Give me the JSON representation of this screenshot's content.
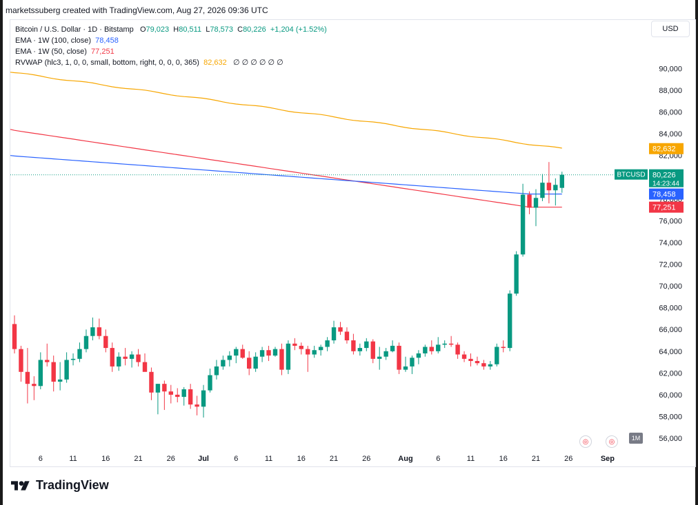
{
  "header": {
    "credit": "marketssuberg created with TradingView.com, Aug 27, 2026 09:36 UTC"
  },
  "legend": {
    "symbol": "Bitcoin / U.S. Dollar · 1D · Bitstamp",
    "open_label": "O",
    "open": "79,023",
    "high_label": "H",
    "high": "80,511",
    "low_label": "L",
    "low": "78,573",
    "close_label": "C",
    "close": "80,226",
    "change": "+1,204 (+1.52%)",
    "ema100_label": "EMA · 1W (100, close)",
    "ema100_value": "78,458",
    "ema50_label": "EMA · 1W (50, close)",
    "ema50_value": "77,251",
    "rvwap_label": "RVWAP (hlc3, 1, 0, 0, small, bottom, right, 0, 0, 0, 365)",
    "rvwap_value": "82,632",
    "rvwap_extra": "∅ ∅ ∅ ∅ ∅ ∅"
  },
  "currency_button": "USD",
  "interval_badge": "1M",
  "footer": {
    "brand": "TradingView"
  },
  "colors": {
    "up": "#089981",
    "down": "#f23645",
    "ema100": "#2962ff",
    "ema50": "#f23645",
    "rvwap": "#f7a600",
    "price_line": "#089981"
  },
  "chart_data": {
    "type": "candlestick",
    "ylim": [
      54800,
      92500
    ],
    "yticks": [
      56000,
      58000,
      60000,
      62000,
      64000,
      66000,
      68000,
      70000,
      72000,
      74000,
      76000,
      78000,
      80000,
      82000,
      84000,
      86000,
      88000,
      90000
    ],
    "ytick_labels": [
      "56,000",
      "58,000",
      "60,000",
      "62,000",
      "64,000",
      "66,000",
      "68,000",
      "70,000",
      "72,000",
      "74,000",
      "76,000",
      "78,000",
      "80,000",
      "82,000",
      "84,000",
      "86,000",
      "88,000",
      "90,000"
    ],
    "xticks": [
      {
        "label": "6",
        "idx": 4
      },
      {
        "label": "11",
        "idx": 9
      },
      {
        "label": "16",
        "idx": 14
      },
      {
        "label": "21",
        "idx": 19
      },
      {
        "label": "26",
        "idx": 24
      },
      {
        "label": "Jul",
        "idx": 29
      },
      {
        "label": "6",
        "idx": 34
      },
      {
        "label": "11",
        "idx": 39
      },
      {
        "label": "16",
        "idx": 44
      },
      {
        "label": "21",
        "idx": 49
      },
      {
        "label": "26",
        "idx": 54
      },
      {
        "label": "Aug",
        "idx": 60
      },
      {
        "label": "6",
        "idx": 65
      },
      {
        "label": "11",
        "idx": 70
      },
      {
        "label": "16",
        "idx": 75
      },
      {
        "label": "21",
        "idx": 80
      },
      {
        "label": "26",
        "idx": 85
      },
      {
        "label": "Sep",
        "idx": 91
      }
    ],
    "candles": [
      [
        66500,
        67300,
        63800,
        64200
      ],
      [
        64200,
        64500,
        61200,
        62100
      ],
      [
        62100,
        64300,
        59200,
        61000
      ],
      [
        61000,
        61700,
        59500,
        60800
      ],
      [
        60800,
        63900,
        60500,
        63200
      ],
      [
        63200,
        64700,
        62600,
        63000
      ],
      [
        63000,
        63600,
        60300,
        61200
      ],
      [
        61200,
        63000,
        60400,
        61400
      ],
      [
        61400,
        63900,
        61100,
        63200
      ],
      [
        63200,
        63800,
        62700,
        63300
      ],
      [
        63300,
        64800,
        63000,
        64200
      ],
      [
        64200,
        66000,
        63900,
        65400
      ],
      [
        65400,
        67100,
        65000,
        66200
      ],
      [
        66200,
        67000,
        65100,
        65400
      ],
      [
        65400,
        66000,
        63900,
        64300
      ],
      [
        64300,
        64800,
        62100,
        62600
      ],
      [
        62600,
        63900,
        62200,
        63500
      ],
      [
        63500,
        64300,
        62700,
        63300
      ],
      [
        63300,
        64000,
        62500,
        63700
      ],
      [
        63700,
        64200,
        62600,
        63000
      ],
      [
        63000,
        63800,
        62200,
        62100
      ],
      [
        62100,
        62500,
        59500,
        60200
      ],
      [
        60200,
        61000,
        58200,
        61000
      ],
      [
        61000,
        61300,
        58600,
        60300
      ],
      [
        60300,
        60900,
        59200,
        60000
      ],
      [
        60000,
        60600,
        59300,
        59800
      ],
      [
        59800,
        60700,
        59000,
        60500
      ],
      [
        60500,
        61000,
        58700,
        59100
      ],
      [
        59100,
        59900,
        58100,
        58900
      ],
      [
        58900,
        60900,
        57900,
        60400
      ],
      [
        60400,
        62400,
        60200,
        61800
      ],
      [
        61800,
        63200,
        61400,
        62600
      ],
      [
        62600,
        63600,
        62300,
        63200
      ],
      [
        63200,
        64000,
        62600,
        63600
      ],
      [
        63600,
        64400,
        62900,
        64200
      ],
      [
        64200,
        64600,
        63300,
        63400
      ],
      [
        63400,
        64000,
        61800,
        62400
      ],
      [
        62400,
        63900,
        62100,
        63500
      ],
      [
        63500,
        64400,
        63000,
        64100
      ],
      [
        64100,
        64500,
        63100,
        63600
      ],
      [
        63600,
        64400,
        63500,
        64200
      ],
      [
        64200,
        64700,
        61800,
        62300
      ],
      [
        62300,
        65000,
        61900,
        64700
      ],
      [
        64700,
        65200,
        64100,
        64500
      ],
      [
        64500,
        64800,
        63700,
        64200
      ],
      [
        64200,
        64500,
        62100,
        63700
      ],
      [
        63700,
        64500,
        63400,
        64100
      ],
      [
        64100,
        64600,
        63600,
        64400
      ],
      [
        64400,
        65300,
        64000,
        65000
      ],
      [
        65000,
        66800,
        64700,
        66200
      ],
      [
        66200,
        66700,
        65500,
        65800
      ],
      [
        65800,
        66200,
        64700,
        65000
      ],
      [
        65000,
        65600,
        63700,
        64000
      ],
      [
        64000,
        64700,
        63600,
        64300
      ],
      [
        64300,
        65200,
        64000,
        64900
      ],
      [
        64900,
        65100,
        62900,
        63300
      ],
      [
        63300,
        64400,
        62300,
        63500
      ],
      [
        63500,
        64300,
        63200,
        64000
      ],
      [
        64000,
        65000,
        63900,
        64500
      ],
      [
        64500,
        64800,
        61900,
        62300
      ],
      [
        62300,
        63500,
        62100,
        62600
      ],
      [
        62600,
        63600,
        61900,
        63400
      ],
      [
        63400,
        64100,
        62800,
        63800
      ],
      [
        63800,
        64600,
        63500,
        64400
      ],
      [
        64400,
        65000,
        63700,
        64000
      ],
      [
        64000,
        65300,
        63800,
        64600
      ],
      [
        64600,
        65000,
        64300,
        64700
      ],
      [
        64700,
        65400,
        64400,
        64600
      ],
      [
        64600,
        64800,
        63300,
        63700
      ],
      [
        63700,
        64000,
        63000,
        63300
      ],
      [
        63300,
        63800,
        62600,
        63100
      ],
      [
        63100,
        63500,
        62700,
        62900
      ],
      [
        62900,
        63200,
        62300,
        62600
      ],
      [
        62600,
        63100,
        62300,
        62800
      ],
      [
        62800,
        64700,
        62600,
        64400
      ],
      [
        64400,
        65000,
        63900,
        64300
      ],
      [
        64300,
        69600,
        64000,
        69300
      ],
      [
        69300,
        73200,
        69100,
        72900
      ],
      [
        72900,
        79400,
        72700,
        78400
      ],
      [
        78400,
        78700,
        76600,
        77200
      ],
      [
        77200,
        78900,
        75500,
        78100
      ],
      [
        78100,
        80300,
        77800,
        79500
      ],
      [
        79500,
        81400,
        77600,
        78800
      ],
      [
        78800,
        79900,
        77400,
        79300
      ],
      [
        79023,
        80511,
        78573,
        80226
      ]
    ],
    "ema_100w": {
      "name": "EMA · 1W (100, close)",
      "start": 82000,
      "end": 78458,
      "flat_from_idx": 79
    },
    "ema_50w": {
      "name": "EMA · 1W (50, close)",
      "start": 84400,
      "end": 77251,
      "flat_from_idx": 79
    },
    "rvwap": {
      "name": "RVWAP",
      "start": 89700,
      "end": 82632
    },
    "price_labels": [
      {
        "text": "82,632",
        "color": "#f7a600",
        "value": 82632
      },
      {
        "text": "80,226",
        "sub": "14:23:44",
        "color": "#089981",
        "value": 80226,
        "tag": "BTCUSD"
      },
      {
        "text": "78,458",
        "color": "#2962ff",
        "value": 78458
      },
      {
        "text": "77,251",
        "color": "#f23645",
        "value": 77251
      }
    ]
  }
}
